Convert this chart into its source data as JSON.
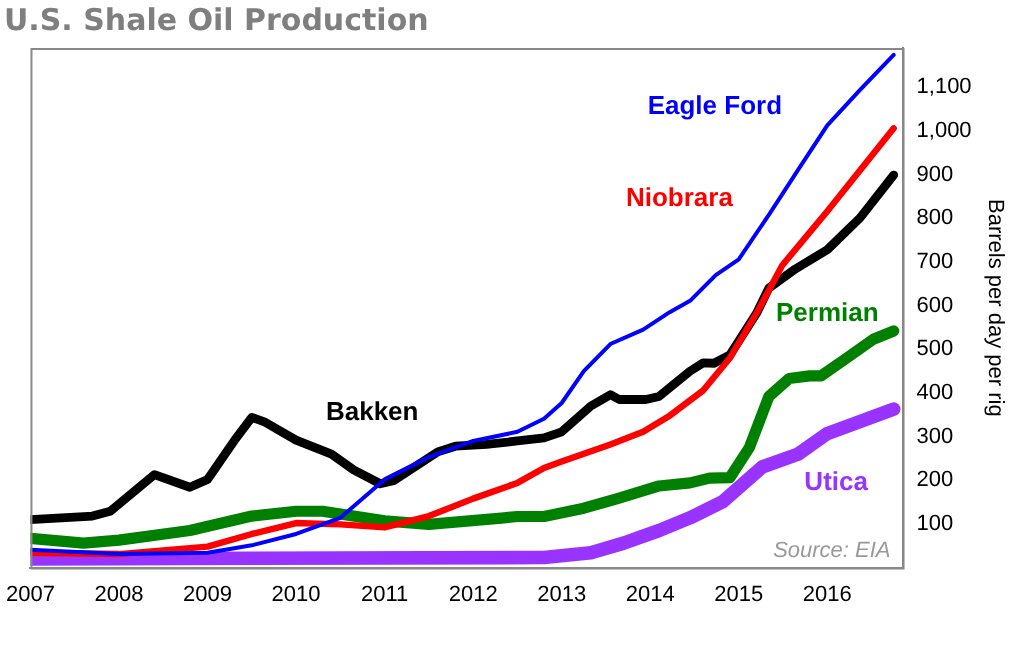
{
  "chart_data": {
    "type": "line",
    "title": "U.S. Shale Oil Production",
    "ylabel": "Barrels per day per rig",
    "xlim": [
      2007,
      2016.85
    ],
    "xticks": [
      2007,
      2008,
      2009,
      2010,
      2011,
      2012,
      2013,
      2014,
      2015,
      2016
    ],
    "ylim": [
      0,
      1190
    ],
    "yticks": [
      100,
      200,
      300,
      400,
      500,
      600,
      700,
      800,
      900,
      {
        "value": 1000,
        "label": "1,000"
      },
      {
        "value": 1100,
        "label": "1,100"
      }
    ],
    "grid": false,
    "legend": false,
    "line_style": "solid",
    "marker": "none",
    "annotations": [
      "Source: EIA"
    ],
    "series": [
      {
        "name": "Eagle Ford",
        "color": "#0000ff",
        "x": [
          2007,
          2008,
          2009,
          2009.5,
          2010,
          2010.5,
          2011,
          2011.5,
          2012,
          2012.5,
          2012.8,
          2013,
          2013.25,
          2013.55,
          2013.92,
          2014.22,
          2014.45,
          2014.74,
          2015,
          2015.34,
          2015.67,
          2016,
          2016.37,
          2016.75
        ],
        "values": [
          41,
          31,
          34,
          51,
          77,
          114,
          202,
          253,
          290,
          311,
          341,
          377,
          450,
          512,
          545,
          585,
          611,
          670,
          706,
          808,
          911,
          1013,
          1094,
          1174
        ]
      },
      {
        "name": "Niobrara",
        "color": "#ff0000",
        "x": [
          2007,
          2008,
          2009,
          2009.5,
          2010,
          2010.5,
          2011,
          2011.5,
          2012,
          2012.5,
          2012.8,
          2013,
          2013.55,
          2013.92,
          2014.22,
          2014.6,
          2014.9,
          2015.2,
          2015.49,
          2016,
          2016.75
        ],
        "values": [
          34,
          31,
          48,
          77,
          102,
          99,
          92,
          118,
          158,
          194,
          228,
          243,
          282,
          311,
          348,
          406,
          480,
          582,
          692,
          816,
          1006
        ]
      },
      {
        "name": "Bakken",
        "color": "#000000",
        "x": [
          2007,
          2007.7,
          2007.9,
          2008.4,
          2008.8,
          2009,
          2009.3,
          2009.5,
          2009.65,
          2010,
          2010.4,
          2010.65,
          2010.95,
          2011.1,
          2011.6,
          2011.8,
          2012.15,
          2012.5,
          2012.8,
          2013,
          2013.33,
          2013.55,
          2013.65,
          2013.95,
          2014.1,
          2014.45,
          2014.6,
          2014.72,
          2014.9,
          2015.2,
          2015.34,
          2015.64,
          2016,
          2016.37,
          2016.75
        ],
        "values": [
          110,
          118,
          129,
          213,
          184,
          202,
          290,
          344,
          333,
          292,
          260,
          224,
          192,
          199,
          265,
          278,
          282,
          290,
          297,
          311,
          370,
          396,
          385,
          385,
          392,
          450,
          469,
          468,
          487,
          582,
          640,
          684,
          728,
          801,
          899
        ]
      },
      {
        "name": "Permian",
        "color": "#008000",
        "x": [
          2007,
          2007.6,
          2008,
          2008.8,
          2009.5,
          2010,
          2010.3,
          2011,
          2011.5,
          2012.35,
          2012.5,
          2012.8,
          2013.25,
          2013.63,
          2014.1,
          2014.45,
          2014.67,
          2014.9,
          2015.12,
          2015.34,
          2015.57,
          2015.8,
          2015.93,
          2016.22,
          2016.52,
          2016.75
        ],
        "values": [
          67,
          56,
          63,
          85,
          118,
          129,
          129,
          107,
          99,
          114,
          117,
          117,
          136,
          158,
          187,
          194,
          205,
          206,
          275,
          392,
          433,
          439,
          439,
          480,
          523,
          542
        ]
      },
      {
        "name": "Utica",
        "color": "#9933ff",
        "x": [
          2007,
          2012.8,
          2013.33,
          2013.7,
          2014.1,
          2014.45,
          2014.82,
          2015.27,
          2015.67,
          2016,
          2016.75
        ],
        "values": [
          20,
          23,
          34,
          56,
          85,
          114,
          151,
          231,
          260,
          307,
          363
        ]
      }
    ]
  }
}
